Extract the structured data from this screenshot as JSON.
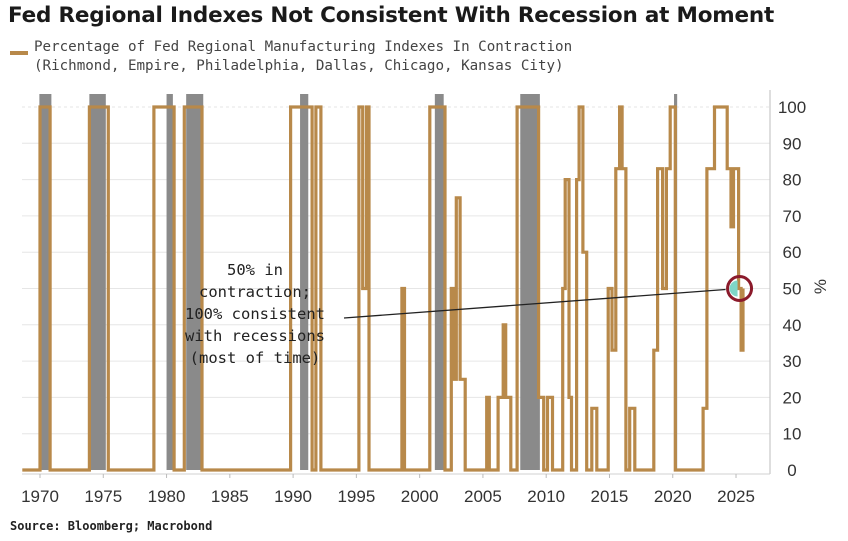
{
  "title": "Fed Regional Indexes Not Consistent With Recession at Moment",
  "legend": {
    "line1": "Percentage of Fed Regional Manufacturing Indexes In Contraction",
    "line2": "(Richmond, Empire, Philadelphia, Dallas, Chicago, Kansas City)"
  },
  "source": "Source: Bloomberg; Macrobond",
  "colors": {
    "series": "#b8894a",
    "recession": "#8a8a8a",
    "highlight_circle": "#8b1a2b",
    "highlight_fill": "#7fd6c8"
  },
  "chart_data": {
    "type": "line",
    "title": "Fed Regional Indexes Not Consistent With Recession at Moment",
    "ylabel": "%",
    "xlabel": "",
    "xlim": [
      1968.6,
      2027.5
    ],
    "ylim": [
      0,
      100
    ],
    "x_ticks": [
      "1970",
      "1975",
      "1980",
      "1985",
      "1990",
      "1995",
      "2000",
      "2005",
      "2010",
      "2015",
      "2020",
      "2025"
    ],
    "y_ticks": [
      "0",
      "10",
      "20",
      "30",
      "40",
      "50",
      "60",
      "70",
      "80",
      "90",
      "100"
    ],
    "y_unit_label": "%",
    "grid": true,
    "legend_position": "top-left",
    "series": [
      {
        "name": "Percentage of Fed Regional Manufacturing Indexes In Contraction",
        "points": [
          [
            1968.6,
            0
          ],
          [
            1970.0,
            0
          ],
          [
            1970.0,
            100
          ],
          [
            1970.8,
            100
          ],
          [
            1970.8,
            0
          ],
          [
            1973.9,
            0
          ],
          [
            1973.9,
            100
          ],
          [
            1975.0,
            100
          ],
          [
            1975.0,
            100
          ],
          [
            1975.4,
            100
          ],
          [
            1975.4,
            0
          ],
          [
            1979.0,
            0
          ],
          [
            1979.0,
            100
          ],
          [
            1980.6,
            100
          ],
          [
            1980.6,
            0
          ],
          [
            1981.4,
            0
          ],
          [
            1981.4,
            100
          ],
          [
            1982.8,
            100
          ],
          [
            1982.8,
            0
          ],
          [
            1989.8,
            0
          ],
          [
            1989.8,
            100
          ],
          [
            1990.8,
            100
          ],
          [
            1990.8,
            100
          ],
          [
            1991.5,
            100
          ],
          [
            1991.5,
            0
          ],
          [
            1991.8,
            0
          ],
          [
            1991.8,
            100
          ],
          [
            1992.2,
            100
          ],
          [
            1992.2,
            0
          ],
          [
            1995.2,
            0
          ],
          [
            1995.2,
            100
          ],
          [
            1995.5,
            100
          ],
          [
            1995.5,
            50
          ],
          [
            1995.8,
            50
          ],
          [
            1995.8,
            100
          ],
          [
            1996.0,
            100
          ],
          [
            1996.0,
            0
          ],
          [
            1998.6,
            0
          ],
          [
            1998.6,
            50
          ],
          [
            1998.8,
            50
          ],
          [
            1998.8,
            0
          ],
          [
            2000.8,
            0
          ],
          [
            2000.8,
            100
          ],
          [
            2002.0,
            100
          ],
          [
            2002.0,
            0
          ],
          [
            2002.5,
            0
          ],
          [
            2002.5,
            50
          ],
          [
            2002.7,
            50
          ],
          [
            2002.7,
            25
          ],
          [
            2002.9,
            25
          ],
          [
            2002.9,
            75
          ],
          [
            2003.2,
            75
          ],
          [
            2003.2,
            25
          ],
          [
            2003.6,
            25
          ],
          [
            2003.6,
            0
          ],
          [
            2005.3,
            0
          ],
          [
            2005.3,
            20
          ],
          [
            2005.5,
            20
          ],
          [
            2005.5,
            0
          ],
          [
            2006.2,
            0
          ],
          [
            2006.2,
            20
          ],
          [
            2006.6,
            20
          ],
          [
            2006.6,
            40
          ],
          [
            2006.8,
            40
          ],
          [
            2006.8,
            20
          ],
          [
            2007.2,
            20
          ],
          [
            2007.2,
            0
          ],
          [
            2007.7,
            0
          ],
          [
            2007.7,
            100
          ],
          [
            2009.4,
            100
          ],
          [
            2009.4,
            20
          ],
          [
            2009.8,
            20
          ],
          [
            2009.8,
            0
          ],
          [
            2010.1,
            0
          ],
          [
            2010.1,
            20
          ],
          [
            2010.5,
            20
          ],
          [
            2010.5,
            0
          ],
          [
            2011.3,
            0
          ],
          [
            2011.3,
            50
          ],
          [
            2011.5,
            50
          ],
          [
            2011.5,
            80
          ],
          [
            2011.8,
            80
          ],
          [
            2011.8,
            20
          ],
          [
            2012.0,
            20
          ],
          [
            2012.0,
            0
          ],
          [
            2012.4,
            0
          ],
          [
            2012.4,
            80
          ],
          [
            2012.6,
            80
          ],
          [
            2012.6,
            100
          ],
          [
            2012.9,
            100
          ],
          [
            2012.9,
            60
          ],
          [
            2013.2,
            60
          ],
          [
            2013.2,
            0
          ],
          [
            2013.6,
            0
          ],
          [
            2013.6,
            17
          ],
          [
            2014.0,
            17
          ],
          [
            2014.0,
            0
          ],
          [
            2014.5,
            0
          ],
          [
            2014.9,
            0
          ],
          [
            2014.9,
            50
          ],
          [
            2015.2,
            50
          ],
          [
            2015.2,
            33
          ],
          [
            2015.5,
            33
          ],
          [
            2015.5,
            83
          ],
          [
            2015.8,
            83
          ],
          [
            2015.8,
            100
          ],
          [
            2016.0,
            100
          ],
          [
            2016.0,
            83
          ],
          [
            2016.3,
            83
          ],
          [
            2016.3,
            0
          ],
          [
            2016.6,
            0
          ],
          [
            2016.6,
            17
          ],
          [
            2017.0,
            17
          ],
          [
            2017.0,
            0
          ],
          [
            2018.5,
            0
          ],
          [
            2018.5,
            33
          ],
          [
            2018.8,
            33
          ],
          [
            2018.8,
            83
          ],
          [
            2019.2,
            83
          ],
          [
            2019.2,
            50
          ],
          [
            2019.5,
            50
          ],
          [
            2019.5,
            83
          ],
          [
            2019.8,
            83
          ],
          [
            2019.8,
            100
          ],
          [
            2020.2,
            100
          ],
          [
            2020.2,
            0
          ],
          [
            2022.4,
            0
          ],
          [
            2022.4,
            17
          ],
          [
            2022.7,
            17
          ],
          [
            2022.7,
            83
          ],
          [
            2023.3,
            83
          ],
          [
            2023.3,
            100
          ],
          [
            2024.3,
            100
          ],
          [
            2024.3,
            83
          ],
          [
            2024.6,
            83
          ],
          [
            2024.6,
            67
          ],
          [
            2024.8,
            67
          ],
          [
            2024.8,
            83
          ],
          [
            2025.2,
            83
          ],
          [
            2025.2,
            50
          ],
          [
            2025.4,
            50
          ],
          [
            2025.4,
            33
          ],
          [
            2025.55,
            33
          ],
          [
            2025.55,
            50
          ]
        ]
      }
    ],
    "recession_bands": [
      {
        "start": 1969.95,
        "end": 1970.9
      },
      {
        "start": 1973.9,
        "end": 1975.2
      },
      {
        "start": 1980.0,
        "end": 1980.5
      },
      {
        "start": 1981.55,
        "end": 1982.9
      },
      {
        "start": 1990.55,
        "end": 1991.2
      },
      {
        "start": 2001.2,
        "end": 2001.9
      },
      {
        "start": 2007.95,
        "end": 2009.5
      },
      {
        "start": 2020.1,
        "end": 2020.35
      }
    ],
    "annotation": {
      "lines": [
        "50% in",
        "contraction;",
        "100% consistent",
        "with recessions",
        "(most of time)"
      ],
      "target_x": 2025.2,
      "target_y": 50,
      "text_anchor_x": 1985.0,
      "text_anchor_y": 42
    }
  }
}
